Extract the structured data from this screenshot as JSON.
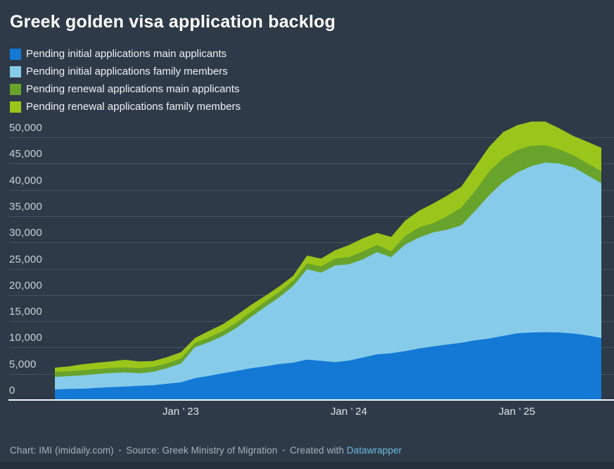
{
  "header": {
    "title": "Greek golden visa application backlog"
  },
  "footer": {
    "chart_credit": "Chart: IMI (imidaily.com)",
    "source": "Source: Greek Ministry of Migration",
    "created_with": "Created with",
    "tool": "Datawrapper",
    "separator": "•"
  },
  "colors": {
    "background": "#2e3a47",
    "baseline": "#f5f7f8",
    "gridline": "rgba(255,255,255,0.13)"
  },
  "chart_data": {
    "type": "area",
    "stacked": true,
    "title": "Greek golden visa application backlog",
    "x_unit": "month",
    "grid": "horizontal",
    "legend_position": "top-left",
    "ylim": [
      0,
      50000
    ],
    "categories": [
      "Apr 2022",
      "May 2022",
      "Jun 2022",
      "Jul 2022",
      "Aug 2022",
      "Sep 2022",
      "Oct 2022",
      "Nov 2022",
      "Dec 2022",
      "Jan 2023",
      "Feb 2023",
      "Mar 2023",
      "Apr 2023",
      "May 2023",
      "Jun 2023",
      "Jul 2023",
      "Aug 2023",
      "Sep 2023",
      "Oct 2023",
      "Nov 2023",
      "Dec 2023",
      "Jan 2024",
      "Feb 2024",
      "Mar 2024",
      "Apr 2024",
      "May 2024",
      "Jun 2024",
      "Jul 2024",
      "Aug 2024",
      "Sep 2024",
      "Oct 2024",
      "Nov 2024",
      "Dec 2024",
      "Jan 2025",
      "Feb 2025",
      "Mar 2025",
      "Apr 2025",
      "May 2025",
      "Jun 2025",
      "Jul 2025"
    ],
    "series": [
      {
        "name": "Pending initial applications main applicants",
        "color": "#1379d5",
        "values": [
          2000,
          2100,
          2150,
          2300,
          2450,
          2550,
          2700,
          2800,
          3100,
          3350,
          4150,
          4600,
          5100,
          5550,
          6050,
          6400,
          6850,
          7100,
          7700,
          7450,
          7200,
          7500,
          8100,
          8700,
          8900,
          9300,
          9800,
          10200,
          10550,
          10900,
          11350,
          11700,
          12200,
          12700,
          12850,
          12900,
          12850,
          12650,
          12300,
          11800
        ]
      },
      {
        "name": "Pending initial applications family members",
        "color": "#86cbe9",
        "values": [
          2400,
          2450,
          2550,
          2650,
          2700,
          2700,
          2400,
          2550,
          2950,
          3600,
          5900,
          6400,
          7100,
          8250,
          9750,
          11300,
          12700,
          14600,
          17200,
          16800,
          18400,
          18350,
          18700,
          19450,
          18300,
          20300,
          21150,
          21700,
          21850,
          22350,
          24650,
          27300,
          29300,
          30600,
          31650,
          32300,
          32150,
          31650,
          30500,
          29450
        ]
      },
      {
        "name": "Pending renewal applications main applicants",
        "color": "#68a32c",
        "values": [
          950,
          950,
          950,
          950,
          950,
          950,
          950,
          950,
          900,
          950,
          800,
          900,
          950,
          1000,
          1000,
          1000,
          1000,
          950,
          1100,
          1150,
          1300,
          1350,
          1500,
          1350,
          1100,
          1600,
          1900,
          1750,
          2600,
          3350,
          3800,
          4500,
          4500,
          4300,
          3900,
          3300,
          2700,
          2300,
          2250,
          2300
        ]
      },
      {
        "name": "Pending renewal applications family members",
        "color": "#9ac51a",
        "values": [
          800,
          900,
          1150,
          1200,
          1250,
          1450,
          1300,
          1100,
          1200,
          1200,
          950,
          1250,
          1300,
          1400,
          1300,
          1100,
          1050,
          950,
          1500,
          1500,
          1600,
          2300,
          2500,
          2300,
          2750,
          2950,
          3200,
          3750,
          3900,
          4000,
          4600,
          4700,
          5000,
          4700,
          4600,
          4500,
          4000,
          3650,
          4100,
          4450
        ]
      }
    ],
    "yticks": [
      0,
      5000,
      10000,
      15000,
      20000,
      25000,
      30000,
      35000,
      40000,
      45000,
      50000
    ],
    "ytick_labels": [
      "0",
      "5,000",
      "10,000",
      "15,000",
      "20,000",
      "25,000",
      "30,000",
      "35,000",
      "40,000",
      "45,000",
      "50,000"
    ],
    "xticks": [
      {
        "label": "Jan ’ 23",
        "index": 9
      },
      {
        "label": "Jan ’ 24",
        "index": 21
      },
      {
        "label": "Jan ’ 25",
        "index": 33
      }
    ]
  }
}
